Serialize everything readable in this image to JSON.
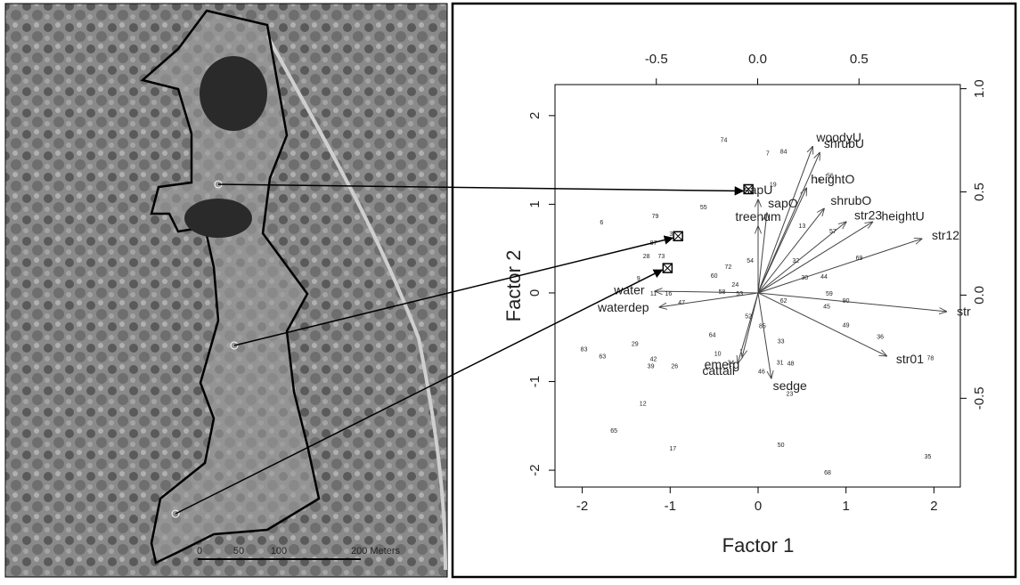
{
  "map": {
    "scale_labels": [
      "0",
      "50",
      "100",
      "200 Meters"
    ]
  },
  "chart_data": {
    "type": "biplot",
    "x_label": "Factor 1",
    "y_label": "Factor 2",
    "xlim": [
      -2.31,
      2.3
    ],
    "ylim": [
      -2.19,
      2.35
    ],
    "xticks": [
      -2,
      -1,
      0,
      1,
      2
    ],
    "yticks": [
      -2,
      -1,
      0,
      1,
      2
    ],
    "x2lim": [
      -1.0,
      1.0
    ],
    "x2ticks": [
      {
        "value": -0.5,
        "label": "-0.5"
      },
      {
        "value": 0,
        "label": "0.0"
      },
      {
        "value": 0.5,
        "label": "0.5"
      }
    ],
    "y2lim": [
      -0.93,
      1.02
    ],
    "y2ticks": [
      {
        "value": 1,
        "label": "1.0"
      },
      {
        "value": 0.5,
        "label": "0.5"
      },
      {
        "value": 0,
        "label": "0.0"
      },
      {
        "value": -0.5,
        "label": "-0.5"
      }
    ],
    "vectors": [
      {
        "name": "woodyU",
        "x": 0.62,
        "y": 1.65
      },
      {
        "name": "shrubU",
        "x": 0.7,
        "y": 1.58
      },
      {
        "name": "heightO",
        "x": 0.55,
        "y": 1.18
      },
      {
        "name": "sapU",
        "x": 0.0,
        "y": 1.05
      },
      {
        "name": "sapO",
        "x": 0.1,
        "y": 0.9
      },
      {
        "name": "treenum",
        "x": 0.0,
        "y": 0.75
      },
      {
        "name": "shrubO",
        "x": 0.75,
        "y": 0.95
      },
      {
        "name": "str23",
        "x": 1.0,
        "y": 0.8
      },
      {
        "name": "heightU",
        "x": 1.3,
        "y": 0.8
      },
      {
        "name": "str12",
        "x": 1.86,
        "y": 0.61
      },
      {
        "name": "str",
        "x": 2.14,
        "y": -0.21
      },
      {
        "name": "str01",
        "x": 1.46,
        "y": -0.71
      },
      {
        "name": "sedge",
        "x": 0.15,
        "y": -0.96
      },
      {
        "name": "cattail",
        "x": -0.23,
        "y": -0.79
      },
      {
        "name": "emerg",
        "x": -0.18,
        "y": -0.72
      },
      {
        "name": "water",
        "x": -1.17,
        "y": 0.02
      },
      {
        "name": "waterdep",
        "x": -1.12,
        "y": -0.16
      }
    ],
    "points": [
      {
        "label": "74",
        "x": -0.39,
        "y": 1.72
      },
      {
        "label": "7",
        "x": 0.11,
        "y": 1.57
      },
      {
        "label": "84",
        "x": 0.29,
        "y": 1.59
      },
      {
        "label": "19",
        "x": 0.17,
        "y": 1.22
      },
      {
        "label": "15",
        "x": 0.68,
        "y": 1.27
      },
      {
        "label": "56",
        "x": 0.82,
        "y": 1.32
      },
      {
        "label": "6",
        "x": -1.78,
        "y": 0.79
      },
      {
        "label": "79",
        "x": -1.17,
        "y": 0.86
      },
      {
        "label": "55",
        "x": -0.62,
        "y": 0.96
      },
      {
        "label": "3",
        "x": -0.99,
        "y": 0.66
      },
      {
        "label": "87",
        "x": -1.19,
        "y": 0.56
      },
      {
        "label": "28",
        "x": -1.27,
        "y": 0.41
      },
      {
        "label": "73",
        "x": -1.1,
        "y": 0.41
      },
      {
        "label": "9",
        "x": -1.36,
        "y": 0.16
      },
      {
        "label": "60",
        "x": -0.5,
        "y": 0.19
      },
      {
        "label": "72",
        "x": -0.34,
        "y": 0.29
      },
      {
        "label": "54",
        "x": -0.09,
        "y": 0.36
      },
      {
        "label": "24",
        "x": -0.26,
        "y": 0.09
      },
      {
        "label": "58",
        "x": -0.41,
        "y": 0.01
      },
      {
        "label": "53",
        "x": -0.21,
        "y": -0.01
      },
      {
        "label": "11",
        "x": -1.19,
        "y": -0.01
      },
      {
        "label": "16",
        "x": -1.02,
        "y": -0.01
      },
      {
        "label": "47",
        "x": -0.87,
        "y": -0.11
      },
      {
        "label": "64",
        "x": -0.52,
        "y": -0.48
      },
      {
        "label": "29",
        "x": -1.4,
        "y": -0.58
      },
      {
        "label": "83",
        "x": -1.98,
        "y": -0.64
      },
      {
        "label": "63",
        "x": -1.77,
        "y": -0.72
      },
      {
        "label": "42",
        "x": -1.19,
        "y": -0.75
      },
      {
        "label": "39",
        "x": -1.22,
        "y": -0.83
      },
      {
        "label": "26",
        "x": -0.95,
        "y": -0.83
      },
      {
        "label": "10",
        "x": -0.46,
        "y": -0.69
      },
      {
        "label": "34",
        "x": -0.31,
        "y": -0.79
      },
      {
        "label": "33",
        "x": 0.26,
        "y": -0.55
      },
      {
        "label": "48",
        "x": 0.37,
        "y": -0.8
      },
      {
        "label": "31",
        "x": 0.25,
        "y": -0.79
      },
      {
        "label": "46",
        "x": 0.04,
        "y": -0.89
      },
      {
        "label": "85",
        "x": 0.05,
        "y": -0.38
      },
      {
        "label": "52",
        "x": -0.11,
        "y": -0.27
      },
      {
        "label": "62",
        "x": 0.29,
        "y": -0.09
      },
      {
        "label": "44",
        "x": 0.75,
        "y": 0.18
      },
      {
        "label": "59",
        "x": 0.81,
        "y": -0.01
      },
      {
        "label": "90",
        "x": 1.0,
        "y": -0.09
      },
      {
        "label": "45",
        "x": 0.78,
        "y": -0.16
      },
      {
        "label": "49",
        "x": 1.0,
        "y": -0.37
      },
      {
        "label": "36",
        "x": 1.39,
        "y": -0.5
      },
      {
        "label": "78",
        "x": 1.96,
        "y": -0.74
      },
      {
        "label": "69",
        "x": 1.15,
        "y": 0.39
      },
      {
        "label": "30",
        "x": 0.53,
        "y": 0.17
      },
      {
        "label": "23",
        "x": 0.36,
        "y": -1.14
      },
      {
        "label": "12",
        "x": -1.31,
        "y": -1.25
      },
      {
        "label": "65",
        "x": -1.64,
        "y": -1.56
      },
      {
        "label": "17",
        "x": -0.97,
        "y": -1.76
      },
      {
        "label": "50",
        "x": 0.26,
        "y": -1.72
      },
      {
        "label": "35",
        "x": 1.93,
        "y": -1.85
      },
      {
        "label": "68",
        "x": 0.79,
        "y": -2.03
      },
      {
        "label": "13",
        "x": 0.5,
        "y": 0.75
      },
      {
        "label": "32",
        "x": 0.43,
        "y": 0.36
      },
      {
        "label": "57",
        "x": 0.85,
        "y": 0.69
      }
    ],
    "highlighted": [
      {
        "x": -0.11,
        "y": 1.17
      },
      {
        "x": -0.91,
        "y": 0.64
      },
      {
        "x": -1.03,
        "y": 0.28
      }
    ]
  }
}
